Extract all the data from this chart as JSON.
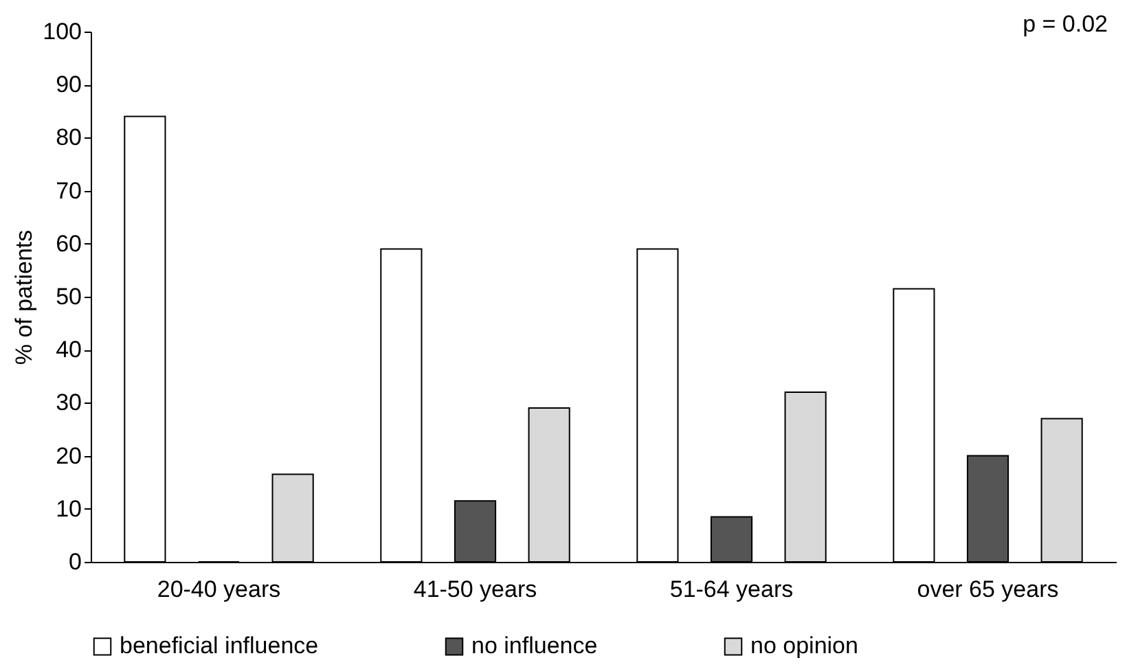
{
  "chart_data": {
    "type": "bar",
    "ylabel": "% of patients",
    "categories": [
      "20-40 years",
      "41-50 years",
      "51-64 years",
      "over 65 years"
    ],
    "series": [
      {
        "name": "beneficial influence",
        "color": "#ffffff",
        "values": [
          84,
          59,
          59,
          51.5
        ]
      },
      {
        "name": "no influence",
        "color": "#555555",
        "values": [
          0,
          11.5,
          8.5,
          20
        ]
      },
      {
        "name": "no opinion",
        "color": "#d9d9d9",
        "values": [
          16.5,
          29,
          32,
          27
        ]
      }
    ],
    "ylim": [
      0,
      100
    ],
    "yticks": [
      0,
      10,
      20,
      30,
      40,
      50,
      60,
      70,
      80,
      90,
      100
    ],
    "grid": false,
    "legend": "bottom",
    "annotations": [
      "p = 0.02"
    ]
  }
}
